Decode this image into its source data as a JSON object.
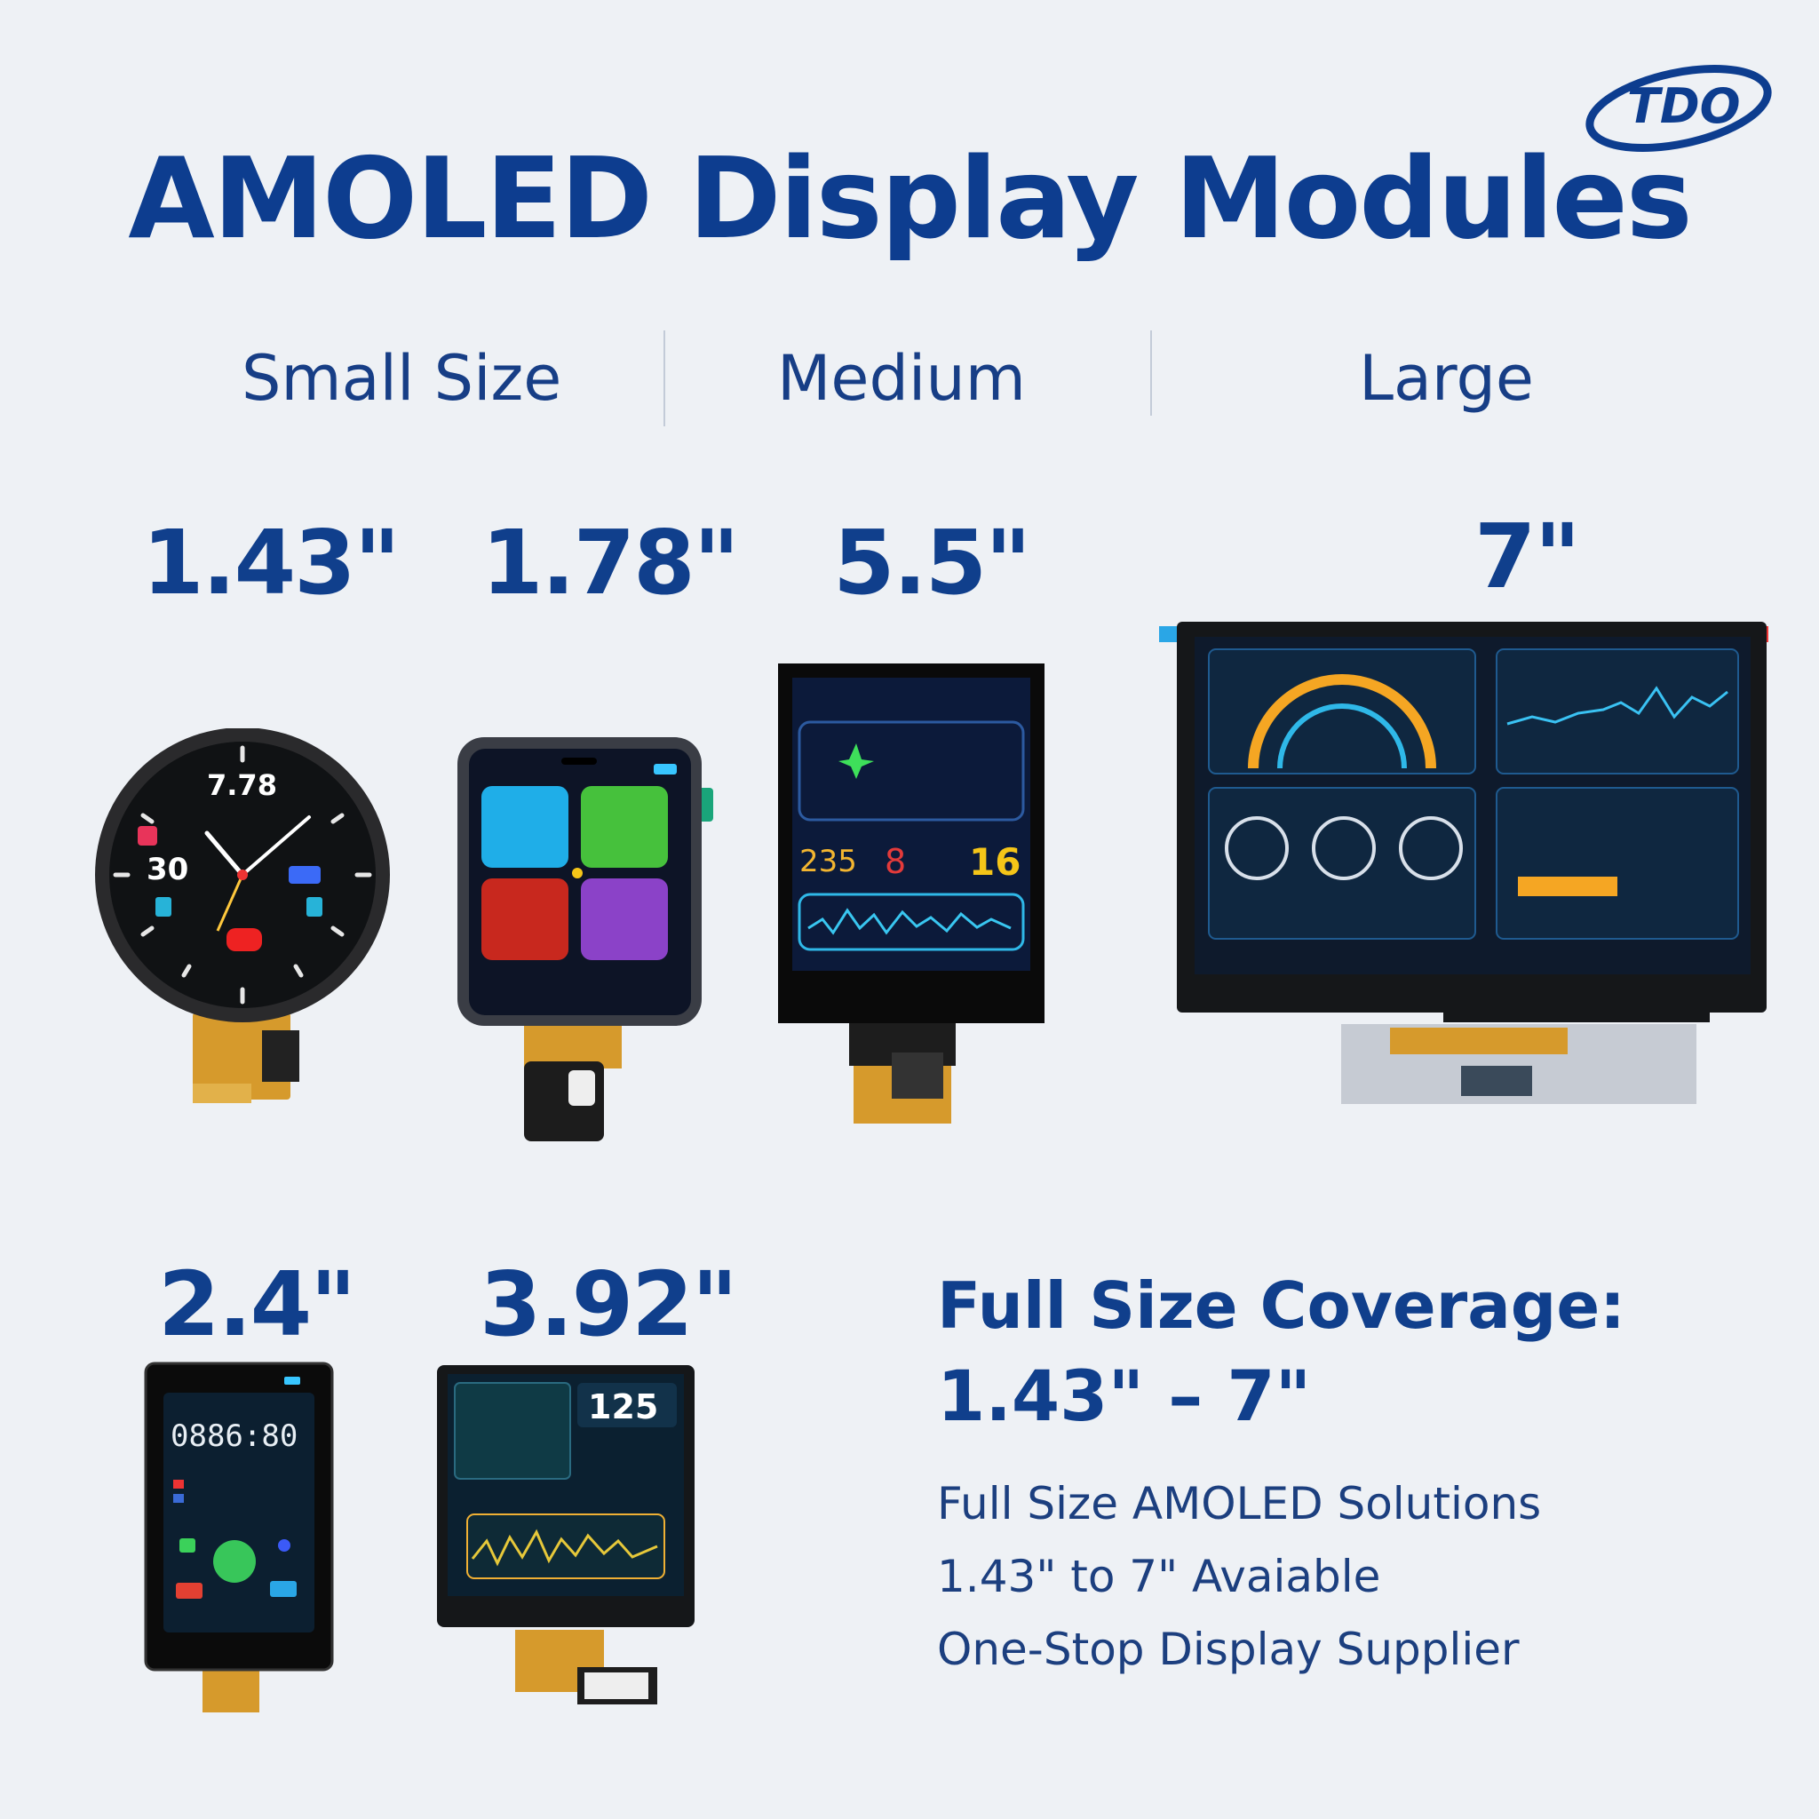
{
  "brand": {
    "logo_text": "TDO"
  },
  "title": "AMOLED Display Modules",
  "categories": [
    "Small Size",
    "Medium",
    "Large"
  ],
  "sizes": {
    "s143": "1.43\"",
    "s178": "1.78\"",
    "s55": "5.5\"",
    "s7": "7\"",
    "s24": "2.4\"",
    "s392": "3.92\""
  },
  "watch_screen": {
    "time": "7.78",
    "left_num": "30"
  },
  "phone_screen": {
    "clock": "0886:80"
  },
  "screen392": {
    "value": "125"
  },
  "screen55": {
    "values": [
      "235",
      "8",
      "16"
    ]
  },
  "coverage": {
    "title": "Full Size Coverage:",
    "range": "1.43\" – 7\"",
    "lines": [
      "Full Size AMOLED Solutions",
      "1.43\" to 7\" Avaiable",
      "One-Stop Display Supplier"
    ]
  },
  "colors": {
    "brand_blue": "#0d3d8f"
  }
}
